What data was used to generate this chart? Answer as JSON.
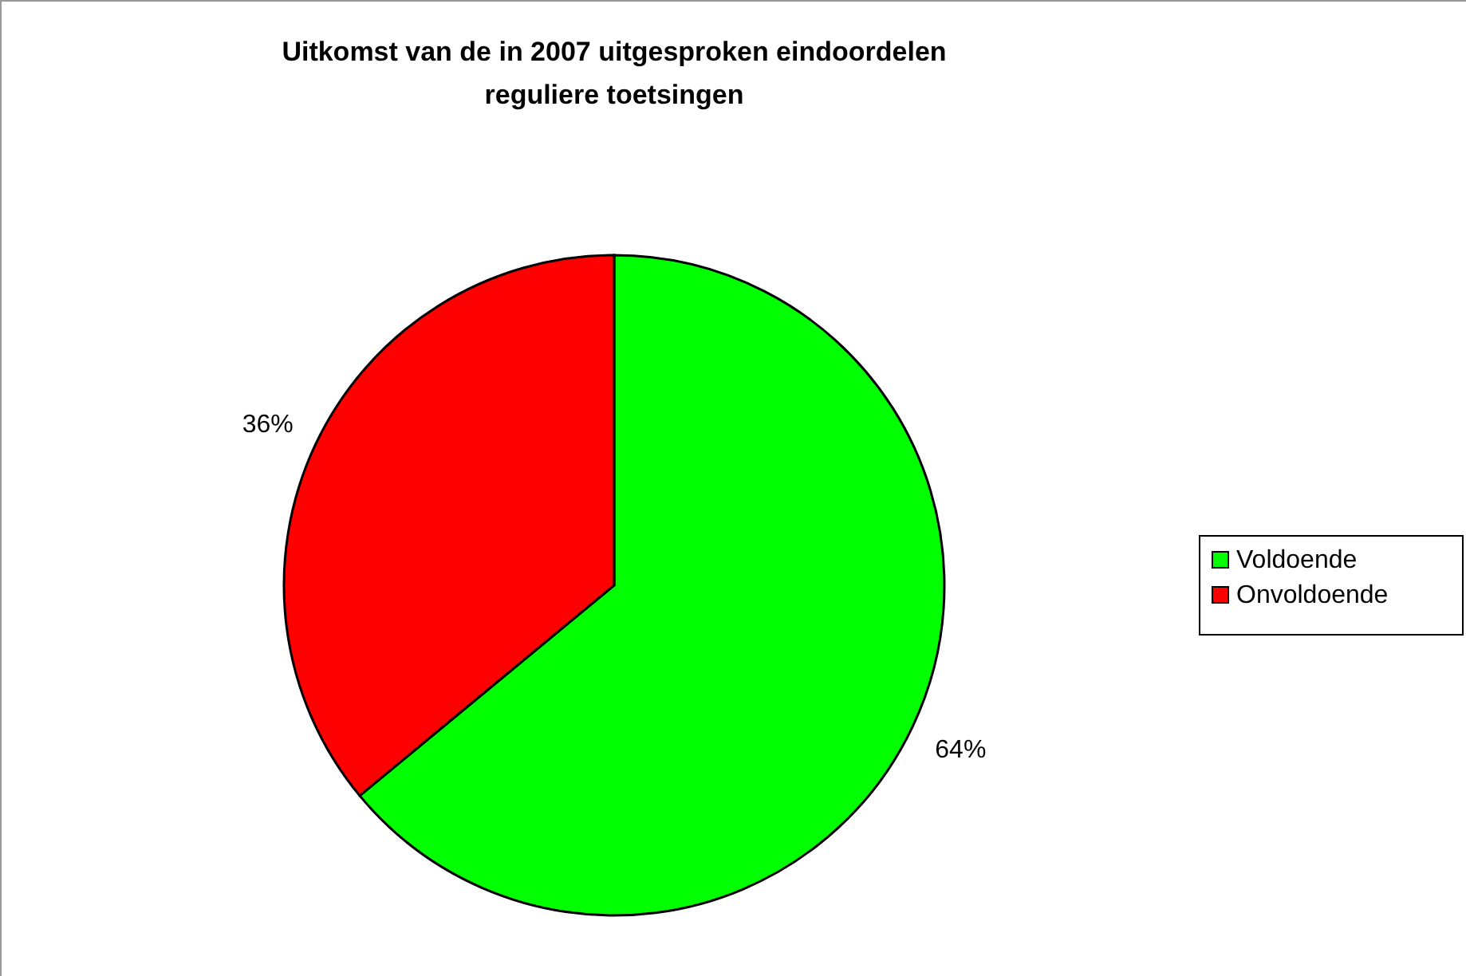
{
  "chart_data": {
    "type": "pie",
    "title": "Uitkomst van de in 2007 uitgesproken eindoordelen\nreguliere toetsingen",
    "categories": [
      "Voldoende",
      "Onvoldoende"
    ],
    "values": [
      64,
      36
    ],
    "colors": [
      "#00ff00",
      "#ff0000"
    ],
    "value_labels": [
      "64%",
      "36%"
    ],
    "legend": "right"
  }
}
